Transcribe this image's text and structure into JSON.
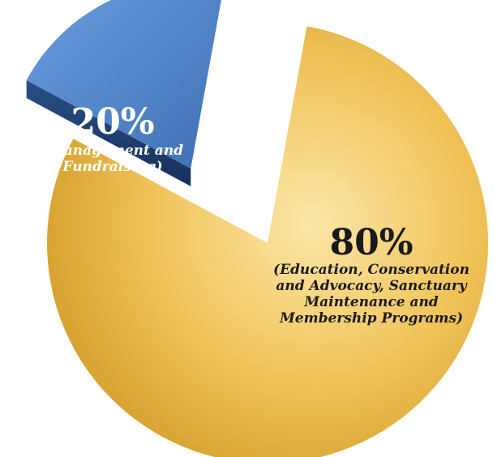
{
  "chart_data": {
    "type": "pie",
    "slices": [
      {
        "percent_label": "20%",
        "value": 20,
        "description_lines": [
          "(Management and",
          "Fundraising)"
        ],
        "color": "#4f82c8",
        "exploded": true
      },
      {
        "percent_label": "80%",
        "value": 80,
        "description_lines": [
          "(Education, Conservation",
          "and Advocacy, Sanctuary",
          "Maintenance and",
          "Membership Programs)"
        ],
        "color": "#f2c14e",
        "exploded": false
      }
    ],
    "title": "",
    "legend": "none"
  },
  "colors": {
    "blue_top": "#5b8fd4",
    "blue_side": "#1f3f72",
    "yellow_light": "#f8db86",
    "yellow_dark": "#d9a42c",
    "text_white": "#ffffff",
    "text_dark": "#1a1a1a"
  }
}
